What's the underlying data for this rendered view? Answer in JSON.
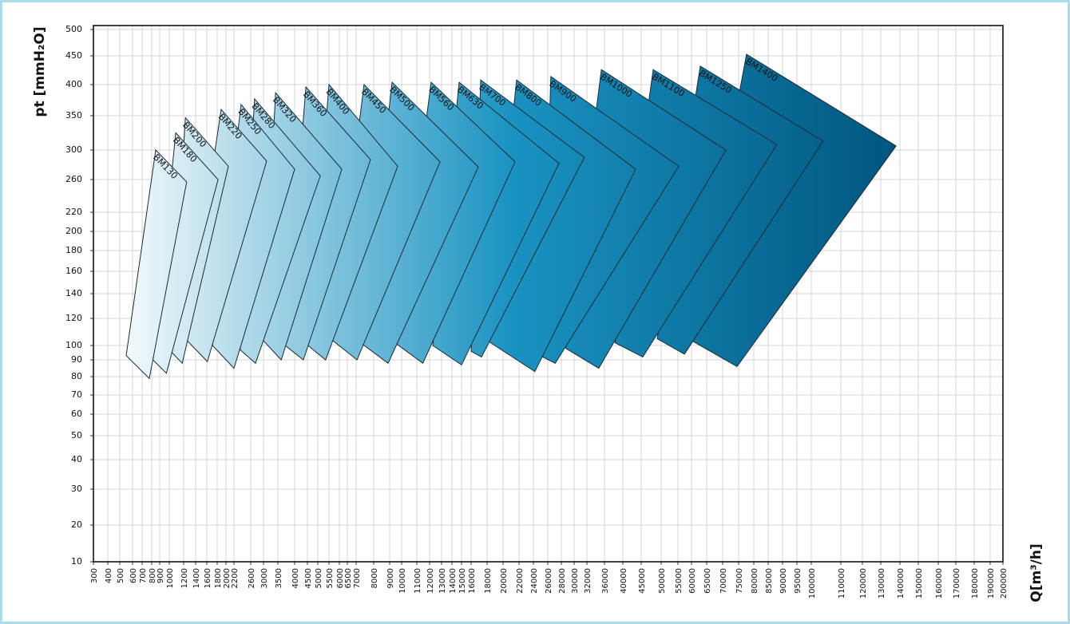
{
  "chart_data": {
    "type": "area-map",
    "y_label": "pt [mmH₂O]",
    "x_label": "Q[m³/h]",
    "xlim": [
      300,
      200000
    ],
    "ylim": [
      10,
      500
    ],
    "xticks": [
      300,
      400,
      500,
      600,
      700,
      800,
      900,
      1000,
      1200,
      1400,
      1600,
      1800,
      2000,
      2200,
      2600,
      3000,
      3500,
      4000,
      4500,
      5000,
      5500,
      6000,
      6500,
      7000,
      8000,
      9000,
      10000,
      11000,
      12000,
      13000,
      14000,
      15000,
      16000,
      18000,
      20000,
      22000,
      24000,
      26000,
      28000,
      30000,
      32000,
      36000,
      40000,
      45000,
      50000,
      55000,
      60000,
      65000,
      70000,
      75000,
      80000,
      85000,
      90000,
      95000,
      100000,
      110000,
      120000,
      130000,
      140000,
      150000,
      160000,
      170000,
      180000,
      190000,
      200000
    ],
    "yticks": [
      10,
      20,
      30,
      40,
      50,
      60,
      70,
      80,
      90,
      100,
      120,
      140,
      160,
      180,
      200,
      220,
      260,
      300,
      350,
      400,
      450,
      500
    ],
    "grid": true,
    "fill_gradient": [
      "#f3f9fc",
      "#1a93c2",
      "#00567f"
    ],
    "series": [
      {
        "name": "BM130",
        "x": [
          850,
          1250,
          775,
          550
        ],
        "y": [
          300,
          257,
          79,
          93
        ]
      },
      {
        "name": "BM180",
        "x": [
          1090,
          1820,
          970,
          815
        ],
        "y": [
          325,
          260,
          82,
          90
        ]
      },
      {
        "name": "BM200",
        "x": [
          1230,
          2060,
          1180,
          1020
        ],
        "y": [
          347,
          278,
          88,
          96
        ]
      },
      {
        "name": "BM220",
        "x": [
          1890,
          3110,
          1610,
          1250
        ],
        "y": [
          360,
          285,
          89,
          104
        ]
      },
      {
        "name": "BM250",
        "x": [
          2370,
          4000,
          2200,
          1710
        ],
        "y": [
          368,
          274,
          85,
          100
        ]
      },
      {
        "name": "BM280",
        "x": [
          2720,
          5110,
          2750,
          2350
        ],
        "y": [
          377,
          265,
          88,
          97
        ]
      },
      {
        "name": "BM320",
        "x": [
          3420,
          6150,
          3600,
          2980
        ],
        "y": [
          387,
          274,
          90,
          104
        ]
      },
      {
        "name": "BM360",
        "x": [
          4440,
          7820,
          4340,
          3720
        ],
        "y": [
          396,
          287,
          90,
          100
        ]
      },
      {
        "name": "BM400",
        "x": [
          5500,
          9670,
          5350,
          4530
        ],
        "y": [
          400,
          278,
          90,
          100
        ]
      },
      {
        "name": "BM450",
        "x": [
          7450,
          12870,
          7050,
          5650
        ],
        "y": [
          400,
          284,
          90,
          104
        ]
      },
      {
        "name": "BM500",
        "x": [
          9200,
          16900,
          8900,
          7360
        ],
        "y": [
          404,
          277,
          88,
          101
        ]
      },
      {
        "name": "BM560",
        "x": [
          12130,
          21500,
          11470,
          9600
        ],
        "y": [
          404,
          284,
          88,
          101
        ]
      },
      {
        "name": "BM630",
        "x": [
          14750,
          27650,
          15000,
          12270
        ],
        "y": [
          404,
          282,
          87,
          100
        ]
      },
      {
        "name": "BM700",
        "x": [
          17200,
          31600,
          17300,
          16000
        ],
        "y": [
          408,
          290,
          92,
          96
        ]
      },
      {
        "name": "BM800",
        "x": [
          21700,
          43500,
          24200,
          18200
        ],
        "y": [
          408,
          274,
          83,
          103
        ]
      },
      {
        "name": "BM900",
        "x": [
          26450,
          55300,
          27100,
          25300
        ],
        "y": [
          414,
          278,
          88,
          92
        ]
      },
      {
        "name": "BM1000",
        "x": [
          35300,
          71000,
          34700,
          28700
        ],
        "y": [
          426,
          300,
          85,
          98
        ]
      },
      {
        "name": "BM1100",
        "x": [
          48000,
          88000,
          45400,
          38300
        ],
        "y": [
          426,
          308,
          92,
          102
        ]
      },
      {
        "name": "BM1250",
        "x": [
          62900,
          104000,
          57400,
          49000
        ],
        "y": [
          432,
          313,
          94,
          105
        ]
      },
      {
        "name": "BM1400",
        "x": [
          77600,
          138000,
          74500,
          60500
        ],
        "y": [
          453,
          306,
          86,
          103
        ]
      }
    ]
  }
}
